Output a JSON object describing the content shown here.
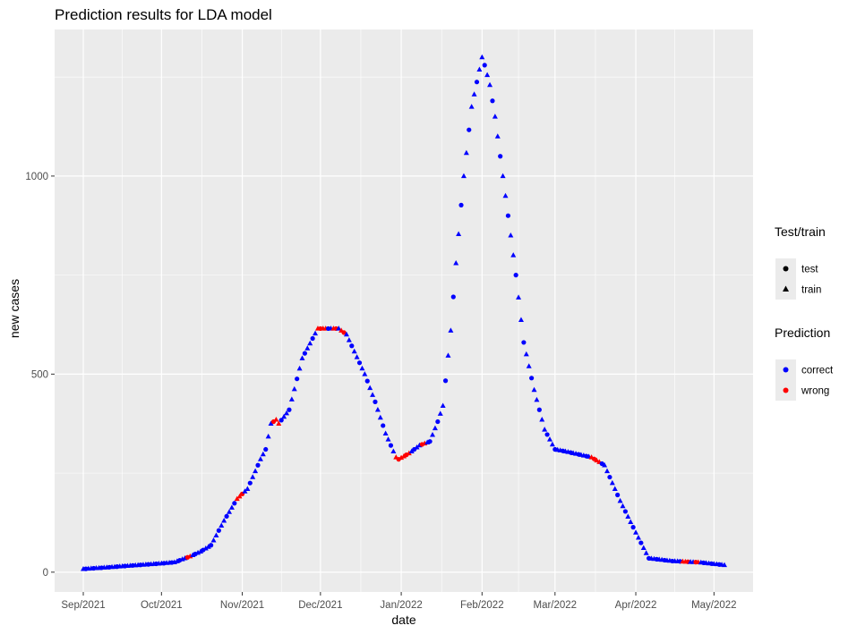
{
  "chart_data": {
    "type": "scatter",
    "title": "Prediction results for LDA model",
    "xlabel": "date",
    "ylabel": "new cases",
    "xlim": [
      "2021-08-21",
      "2022-05-16"
    ],
    "ylim": [
      -50,
      1370
    ],
    "x_ticks": [
      {
        "date": "2021-09-01",
        "label": "Sep/2021"
      },
      {
        "date": "2021-10-01",
        "label": "Oct/2021"
      },
      {
        "date": "2021-11-01",
        "label": "Nov/2021"
      },
      {
        "date": "2021-12-01",
        "label": "Dec/2021"
      },
      {
        "date": "2022-01-01",
        "label": "Jan/2022"
      },
      {
        "date": "2022-02-01",
        "label": "Feb/2022"
      },
      {
        "date": "2022-03-01",
        "label": "Mar/2022"
      },
      {
        "date": "2022-04-01",
        "label": "Apr/2022"
      },
      {
        "date": "2022-05-01",
        "label": "May/2022"
      }
    ],
    "y_ticks": [
      0,
      500,
      1000
    ],
    "grid": true,
    "background": "#ebebeb",
    "shape_legend": {
      "title": "Test/train",
      "entries": [
        {
          "label": "test",
          "shape": "circle"
        },
        {
          "label": "train",
          "shape": "triangle"
        }
      ]
    },
    "color_legend": {
      "title": "Prediction",
      "entries": [
        {
          "label": "correct",
          "color": "#0000ff"
        },
        {
          "label": "wrong",
          "color": "#ff0000"
        }
      ]
    },
    "legend_position": "right",
    "curve": [
      [
        "2021-09-01",
        8
      ],
      [
        "2021-09-10",
        12
      ],
      [
        "2021-09-20",
        17
      ],
      [
        "2021-10-01",
        22
      ],
      [
        "2021-10-06",
        25
      ],
      [
        "2021-10-12",
        40
      ],
      [
        "2021-10-16",
        52
      ],
      [
        "2021-10-20",
        68
      ],
      [
        "2021-10-25",
        130
      ],
      [
        "2021-10-30",
        185
      ],
      [
        "2021-11-03",
        210
      ],
      [
        "2021-11-08",
        285
      ],
      [
        "2021-11-10",
        310
      ],
      [
        "2021-11-12",
        375
      ],
      [
        "2021-11-14",
        385
      ],
      [
        "2021-11-15",
        375
      ],
      [
        "2021-11-19",
        410
      ],
      [
        "2021-11-24",
        540
      ],
      [
        "2021-11-28",
        590
      ],
      [
        "2021-11-30",
        615
      ],
      [
        "2021-12-08",
        615
      ],
      [
        "2021-12-11",
        600
      ],
      [
        "2021-12-18",
        500
      ],
      [
        "2021-12-22",
        430
      ],
      [
        "2021-12-26",
        350
      ],
      [
        "2021-12-30",
        290
      ],
      [
        "2021-12-31",
        285
      ],
      [
        "2022-01-04",
        300
      ],
      [
        "2022-01-08",
        320
      ],
      [
        "2022-01-12",
        330
      ],
      [
        "2022-01-15",
        380
      ],
      [
        "2022-01-17",
        420
      ],
      [
        "2022-01-20",
        610
      ],
      [
        "2022-01-22",
        780
      ],
      [
        "2022-01-25",
        1000
      ],
      [
        "2022-01-28",
        1175
      ],
      [
        "2022-02-01",
        1300
      ],
      [
        "2022-02-02",
        1280
      ],
      [
        "2022-02-04",
        1230
      ],
      [
        "2022-02-06",
        1150
      ],
      [
        "2022-02-10",
        950
      ],
      [
        "2022-02-14",
        750
      ],
      [
        "2022-02-17",
        580
      ],
      [
        "2022-02-21",
        460
      ],
      [
        "2022-02-25",
        360
      ],
      [
        "2022-03-01",
        310
      ],
      [
        "2022-03-05",
        305
      ],
      [
        "2022-03-15",
        290
      ],
      [
        "2022-03-20",
        270
      ],
      [
        "2022-03-26",
        180
      ],
      [
        "2022-04-01",
        100
      ],
      [
        "2022-04-06",
        35
      ],
      [
        "2022-04-15",
        28
      ],
      [
        "2022-04-25",
        25
      ],
      [
        "2022-05-05",
        18
      ]
    ],
    "wrong_ranges": [
      [
        "2021-10-11",
        "2021-10-12"
      ],
      [
        "2021-10-30",
        "2021-11-01"
      ],
      [
        "2021-11-13",
        "2021-11-15"
      ],
      [
        "2021-11-30",
        "2021-12-03"
      ],
      [
        "2021-12-06",
        "2021-12-07"
      ],
      [
        "2021-12-09",
        "2021-12-10"
      ],
      [
        "2021-12-30",
        "2022-01-04"
      ],
      [
        "2022-01-09",
        "2022-01-10"
      ],
      [
        "2022-03-15",
        "2022-03-16"
      ],
      [
        "2022-03-17",
        "2022-03-18"
      ],
      [
        "2022-04-19",
        "2022-04-21"
      ],
      [
        "2022-04-24",
        "2022-04-25"
      ]
    ],
    "test_days_mod": 3
  }
}
